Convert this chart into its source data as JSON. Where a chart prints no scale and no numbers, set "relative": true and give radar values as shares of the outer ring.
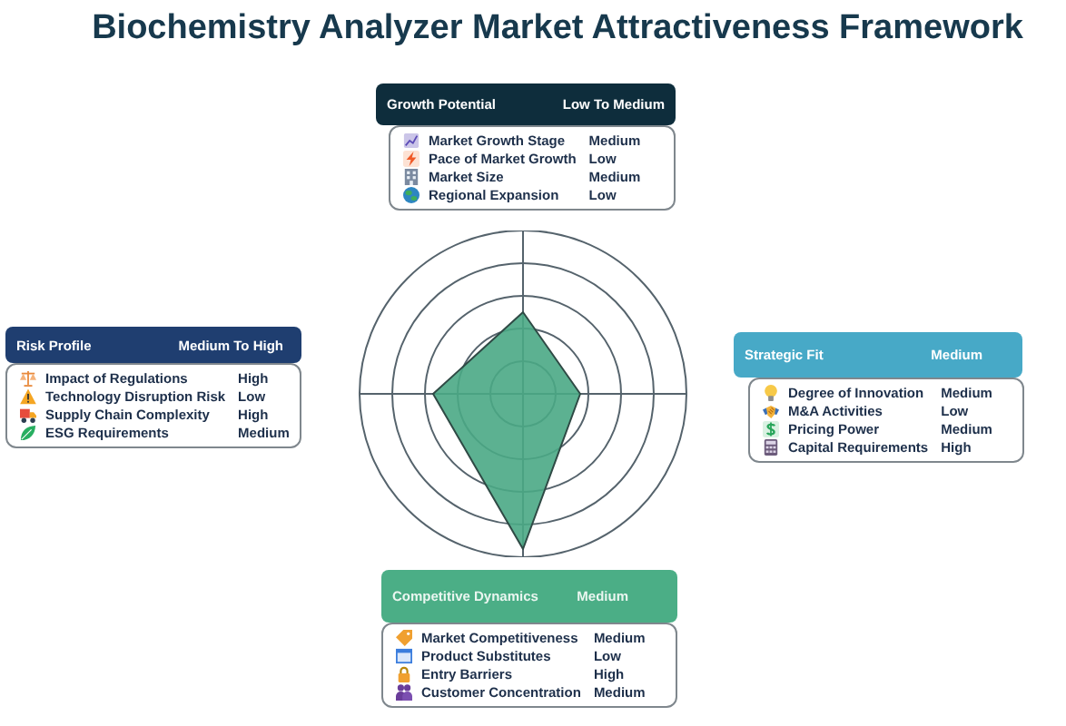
{
  "chart_data": {
    "type": "radar",
    "title": "Biochemistry Analyzer Market Attractiveness Framework",
    "categories": [
      "Growth Potential",
      "Strategic Fit",
      "Competitive Dynamics",
      "Risk Profile"
    ],
    "series": [
      {
        "color": "#4aa885",
        "values": [
          0.5,
          0.35,
          0.95,
          0.55
        ]
      }
    ],
    "relative": true,
    "grid": true,
    "annotations": [
      "Low To Medium",
      "Market Growth Stage",
      "Medium",
      "Pace of Market Growth",
      "Low",
      "Market Size",
      "Medium",
      "Regional Expansion",
      "Low",
      "Medium",
      "Degree of Innovation",
      "Medium",
      "M&A Activities",
      "Low",
      "Pricing Power",
      "Medium",
      "Capital Requirements",
      "High",
      "Medium",
      "Market Competitiveness",
      "Medium",
      "Product Substitutes",
      "Low",
      "Entry Barriers",
      "High",
      "Customer Concentration",
      "Medium",
      "Medium To High",
      "Impact of Regulations",
      "High",
      "Technology Disruption Risk",
      "Low",
      "Supply Chain Complexity",
      "High",
      "ESG Requirements",
      "Medium"
    ]
  }
}
